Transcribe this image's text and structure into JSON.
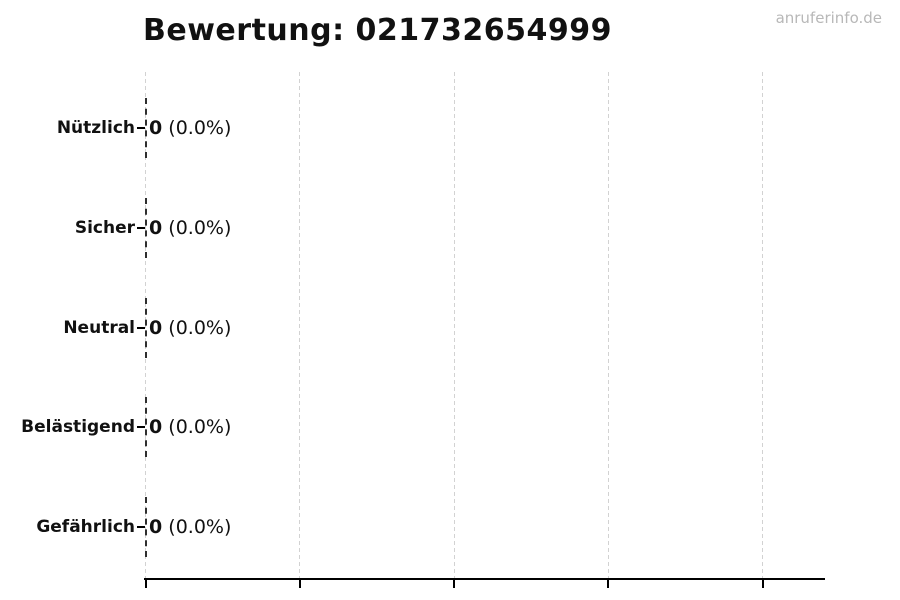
{
  "title": "Bewertung: 021732654999",
  "watermark": "anruferinfo.de",
  "chart_data": {
    "type": "bar",
    "orientation": "horizontal",
    "title": "Bewertung: 021732654999",
    "categories": [
      "Nützlich",
      "Sicher",
      "Neutral",
      "Belästigend",
      "Gefährlich"
    ],
    "values": [
      0,
      0,
      0,
      0,
      0
    ],
    "percent_labels": [
      "(0.0%)",
      "(0.0%)",
      "(0.0%)",
      "(0.0%)",
      "(0.0%)"
    ],
    "bar_annotations": [
      "0 (0.0%)",
      "0 (0.0%)",
      "0 (0.0%)",
      "0 (0.0%)",
      "0 (0.0%)"
    ],
    "xlabel": "",
    "ylabel": "",
    "x_tick_labels_visible": false,
    "x_gridline_count": 5,
    "grid": "vertical-dashed",
    "legend": false
  },
  "colors": {
    "background": "#ffffff",
    "text": "#111111",
    "axis": "#000000",
    "gridline": "#d2d2d2",
    "bar_edge": "#2e2e2e",
    "watermark": "#b8b8b8"
  }
}
